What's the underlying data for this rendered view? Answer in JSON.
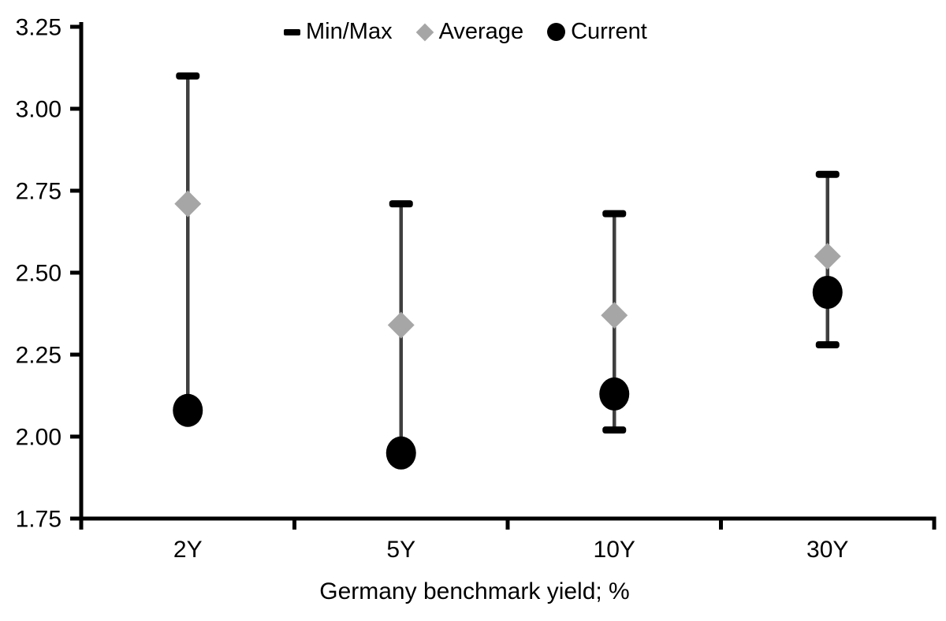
{
  "page": {
    "background": "#ffffff"
  },
  "chart_data": {
    "type": "scatter",
    "subtype": "min-max-range-markers",
    "categories": [
      "2Y",
      "5Y",
      "10Y",
      "30Y"
    ],
    "series": [
      {
        "name": "Min/Max",
        "marker": "dash",
        "color": "#000000",
        "min": [
          2.08,
          1.95,
          2.02,
          2.28
        ],
        "max": [
          3.1,
          2.71,
          2.68,
          2.8
        ]
      },
      {
        "name": "Average",
        "marker": "diamond",
        "color": "#a6a6a6",
        "values": [
          2.71,
          2.34,
          2.37,
          2.55
        ]
      },
      {
        "name": "Current",
        "marker": "circle",
        "color": "#000000",
        "values": [
          2.08,
          1.95,
          2.13,
          2.44
        ]
      }
    ],
    "xlabel": "Germany benchmark yield; %",
    "ylabel": "",
    "ylim": [
      1.75,
      3.25
    ],
    "ytick_step": 0.25,
    "ytick_labels": [
      "3.25",
      "3.00",
      "2.75",
      "2.50",
      "2.25",
      "2.00",
      "1.75"
    ],
    "xtick_labels": [
      "2Y",
      "5Y",
      "10Y",
      "30Y"
    ],
    "grid": false,
    "legend_position": "top-center",
    "legend": [
      {
        "label": "Min/Max",
        "marker": "dash",
        "color": "#000000"
      },
      {
        "label": "Average",
        "marker": "diamond",
        "color": "#a6a6a6"
      },
      {
        "label": "Current",
        "marker": "circle",
        "color": "#000000"
      }
    ],
    "colors": {
      "range_line": "#3f3f3f",
      "cap": "#000000",
      "average": "#a6a6a6",
      "current": "#000000",
      "axis": "#000000",
      "text": "#000000",
      "background": "#ffffff"
    },
    "notes": "Min caps for 2Y and 5Y coincide with (are hidden behind) the Current markers."
  }
}
